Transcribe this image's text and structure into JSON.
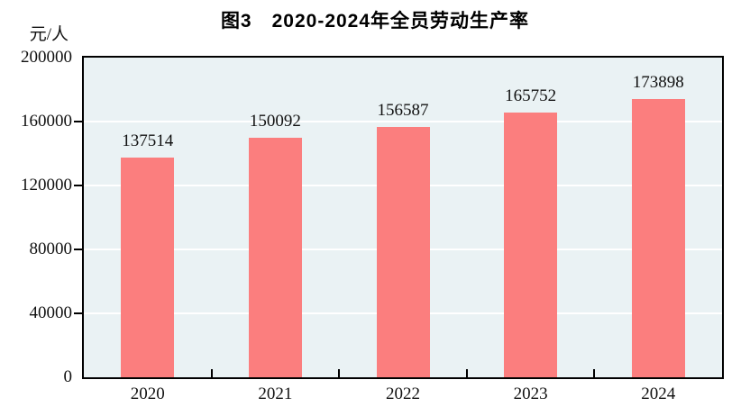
{
  "header": {
    "title": "图3　2020-2024年全员劳动生产率"
  },
  "axes": {
    "y_unit_label": "元/人"
  },
  "chart_data": {
    "type": "bar",
    "title": "图3　2020-2024年全员劳动生产率",
    "categories": [
      "2020",
      "2021",
      "2022",
      "2023",
      "2024"
    ],
    "values": [
      137514,
      150092,
      156587,
      165752,
      173898
    ],
    "xlabel": "",
    "ylabel": "元/人",
    "ylim": [
      0,
      200000
    ],
    "yticks": [
      0,
      40000,
      80000,
      120000,
      160000,
      200000
    ],
    "grid": "horizontal-white",
    "legend": "none",
    "colors": {
      "bar_fill": "#fb7e7e",
      "plot_background": "#eaf2f4",
      "gridline": "#ffffff",
      "axis_frame": "#000000",
      "text": "#111111"
    }
  }
}
